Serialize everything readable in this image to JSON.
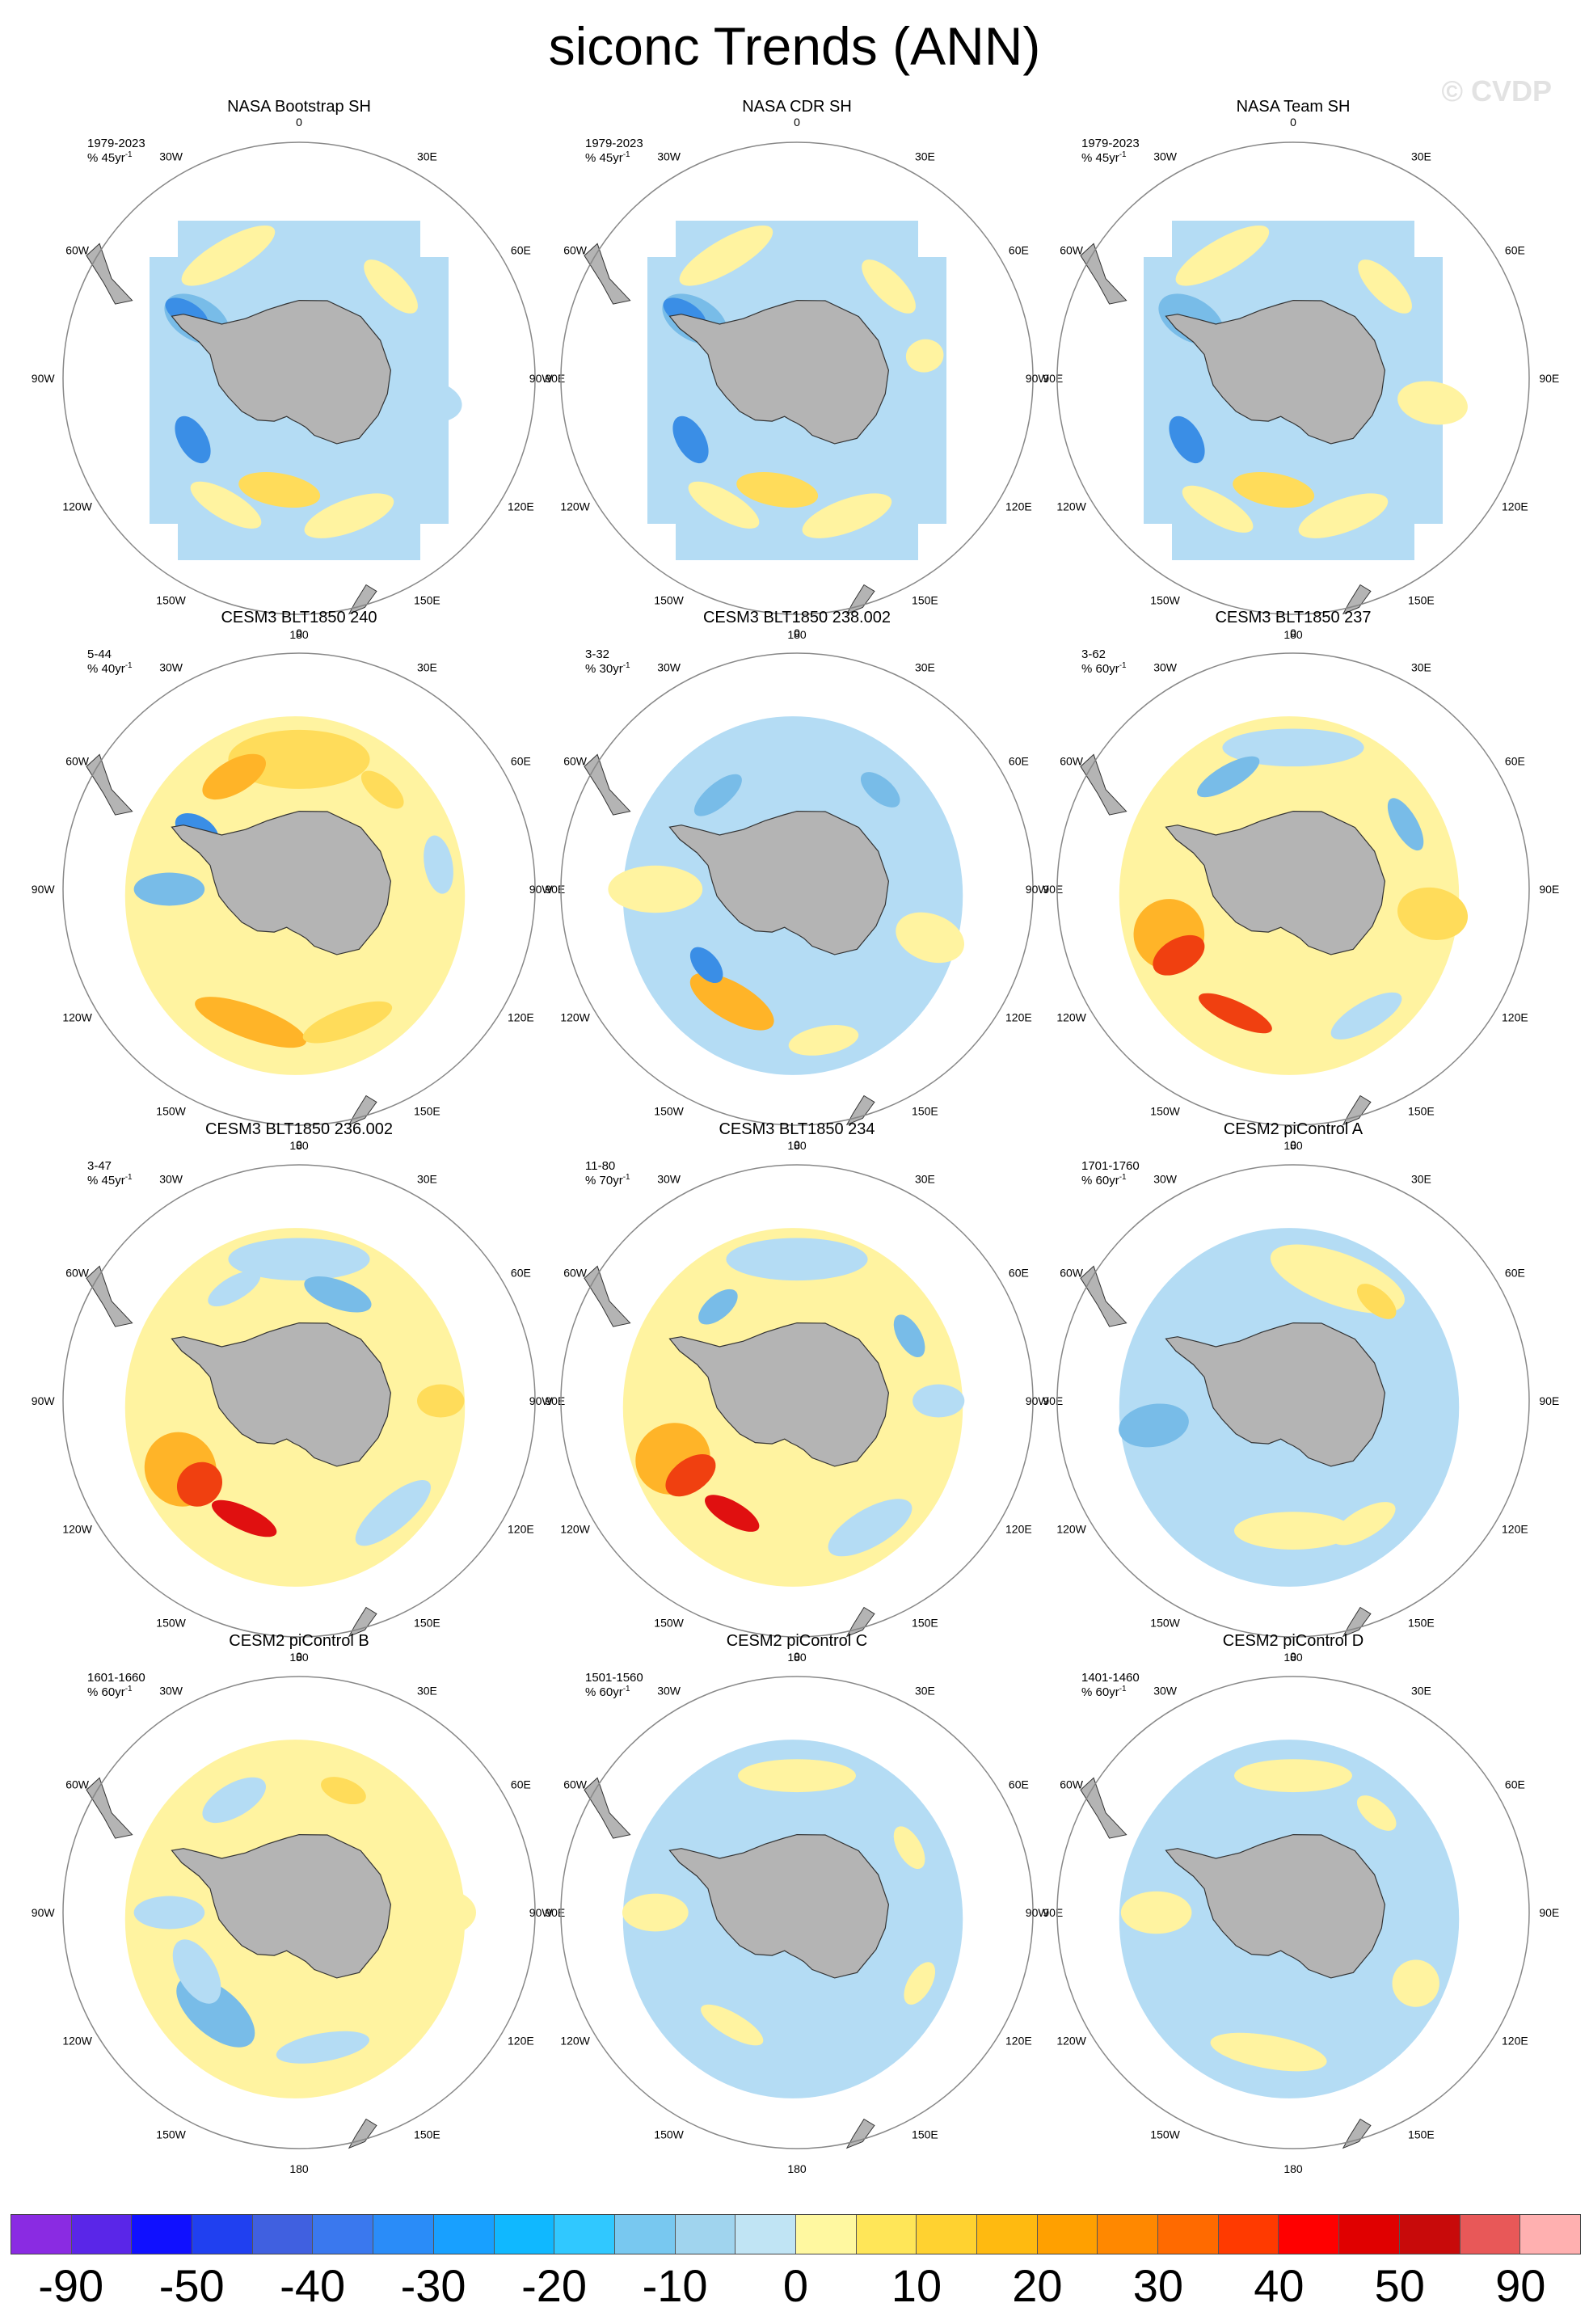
{
  "title": "siconc Trends (ANN)",
  "watermark": "© CVDP",
  "panels": [
    {
      "title": "NASA Bootstrap SH",
      "years": "1979-2023",
      "units": "% 45yr",
      "pattern": "obs_bootstrap"
    },
    {
      "title": "NASA CDR SH",
      "years": "1979-2023",
      "units": "% 45yr",
      "pattern": "obs_cdr"
    },
    {
      "title": "NASA Team SH",
      "years": "1979-2023",
      "units": "% 45yr",
      "pattern": "obs_team"
    },
    {
      "title": "CESM3 BLT1850 240",
      "years": "5-44",
      "units": "% 40yr",
      "pattern": "warm_ne"
    },
    {
      "title": "CESM3 BLT1850 238.002",
      "years": "3-32",
      "units": "% 30yr",
      "pattern": "mixed_ross"
    },
    {
      "title": "CESM3 BLT1850 237",
      "years": "3-62",
      "units": "% 60yr",
      "pattern": "strong_ross"
    },
    {
      "title": "CESM3 BLT1850 236.002",
      "years": "3-47",
      "units": "% 45yr",
      "pattern": "strong_ross2"
    },
    {
      "title": "CESM3 BLT1850 234",
      "years": "11-80",
      "units": "% 70yr",
      "pattern": "strong_ross3"
    },
    {
      "title": "CESM2 piControl A",
      "years": "1701-1760",
      "units": "% 60yr",
      "pattern": "pic_a"
    },
    {
      "title": "CESM2 piControl B",
      "years": "1601-1660",
      "units": "% 60yr",
      "pattern": "pic_b"
    },
    {
      "title": "CESM2 piControl C",
      "years": "1501-1560",
      "units": "% 60yr",
      "pattern": "pic_c"
    },
    {
      "title": "CESM2 piControl D",
      "years": "1401-1460",
      "units": "% 60yr",
      "pattern": "pic_d"
    }
  ],
  "units_superscript": "-1",
  "longitude_labels": [
    "0",
    "30E",
    "60E",
    "90E",
    "120E",
    "150E",
    "180",
    "150W",
    "120W",
    "90W",
    "60W",
    "30W"
  ],
  "colorbar": {
    "colors": [
      "#8a2be2",
      "#5a26e8",
      "#1010ff",
      "#2040f0",
      "#4060e0",
      "#3a78ee",
      "#2a8cf8",
      "#18a0ff",
      "#10b8ff",
      "#30c8ff",
      "#78c8f0",
      "#a0d4ee",
      "#c0e4f4",
      "#fff8a0",
      "#ffe658",
      "#ffd230",
      "#ffba10",
      "#ffa000",
      "#ff8800",
      "#ff6a00",
      "#ff3a00",
      "#ff0000",
      "#e00000",
      "#c80a0a",
      "#e85858",
      "#ffb0b0"
    ],
    "labels": [
      "-90",
      "-50",
      "-40",
      "-30",
      "-20",
      "-10",
      "0",
      "10",
      "20",
      "30",
      "40",
      "50",
      "90"
    ]
  }
}
